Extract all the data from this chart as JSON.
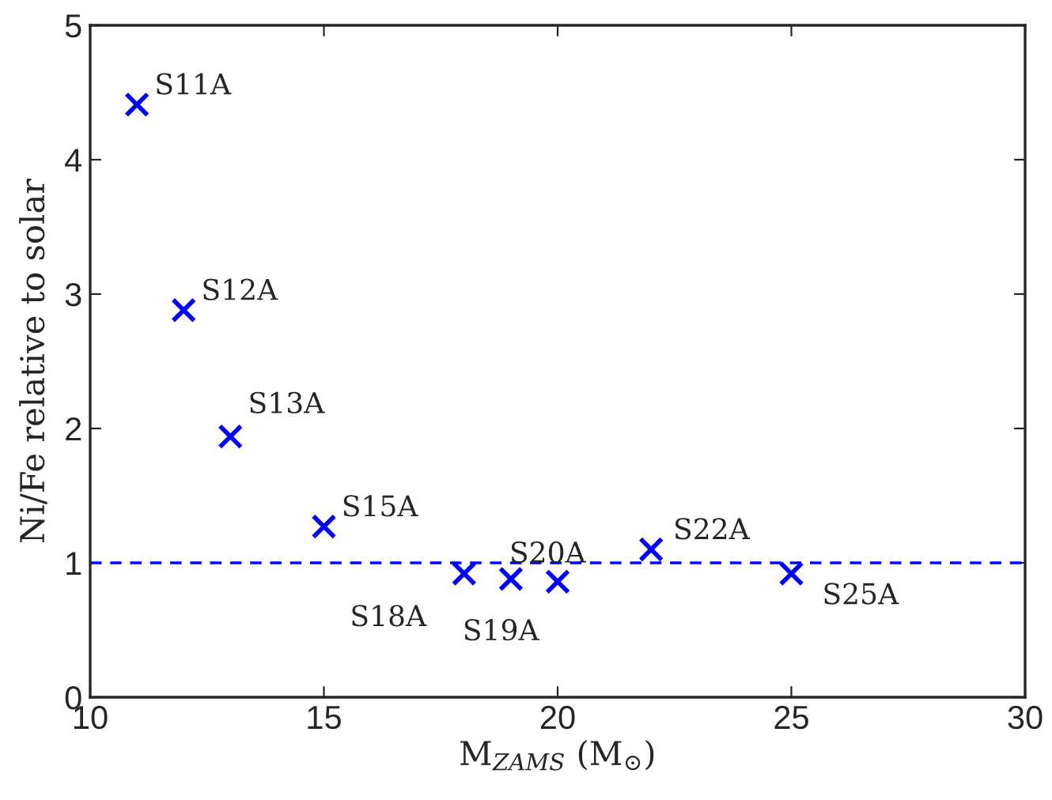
{
  "chart_data": {
    "type": "scatter",
    "xlabel": "M$_{ZAMS}$ (M$_{⊙}$)",
    "ylabel": "Ni/Fe relative to solar",
    "x": [
      11,
      12,
      13,
      15,
      18,
      19,
      20,
      22,
      25
    ],
    "series": [
      {
        "color": "#0000ff",
        "values": [
          4.41,
          2.88,
          1.94,
          1.27,
          0.92,
          0.88,
          0.86,
          1.1,
          0.92
        ]
      }
    ],
    "marker": "cross",
    "xlim": [
      10,
      30
    ],
    "xticks": [
      10,
      15,
      20,
      25,
      30
    ],
    "ylim": [
      0,
      5
    ],
    "yticks": [
      0,
      1,
      2,
      3,
      4,
      5
    ],
    "ref_lines": [
      {
        "axis": "y",
        "value": 1,
        "color": "#0000ff",
        "line_style": "dashed"
      }
    ],
    "grid": false,
    "legend": false,
    "annotations": [
      {
        "text": "S11A",
        "x": 11,
        "y": 4.41
      },
      {
        "text": "S12A",
        "x": 12,
        "y": 2.88
      },
      {
        "text": "S13A",
        "x": 13,
        "y": 1.94
      },
      {
        "text": "S15A",
        "x": 15,
        "y": 1.27
      },
      {
        "text": "S18A",
        "x": 18,
        "y": 0.92
      },
      {
        "text": "S19A",
        "x": 19,
        "y": 0.88
      },
      {
        "text": "S20A",
        "x": 20,
        "y": 0.86
      },
      {
        "text": "S22A",
        "x": 22,
        "y": 1.1
      },
      {
        "text": "S25A",
        "x": 25,
        "y": 0.92
      }
    ]
  }
}
